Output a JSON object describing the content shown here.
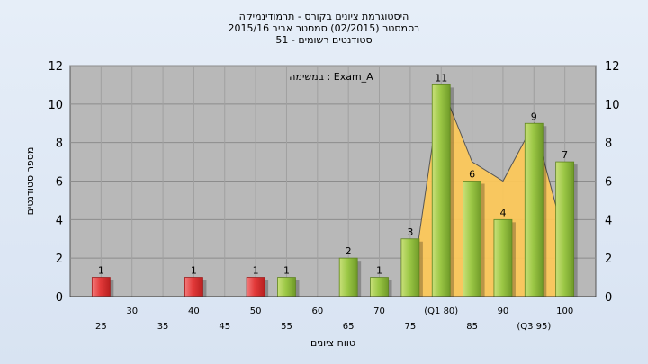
{
  "chart_data": {
    "type": "bar",
    "title_lines": [
      "היסטוגרמת ציונים בקורס - תרמודינמיקה",
      "בסמסטר  (02/2015)  סמסטר אביב 2015/16",
      "סטודנטים רשומים - 51"
    ],
    "annotation": "במשימה : Exam_A",
    "xlabel": "טווח ציונים",
    "ylabel": "מספר סטודנטים",
    "ylim": [
      0,
      12
    ],
    "yticks": [
      "0",
      "2",
      "4",
      "6",
      "8",
      "10",
      "12"
    ],
    "grid": true,
    "x_tick_labels": [
      {
        "x": 25,
        "label": "25",
        "row": 1
      },
      {
        "x": 30,
        "label": "30",
        "row": 0
      },
      {
        "x": 35,
        "label": "35",
        "row": 1
      },
      {
        "x": 40,
        "label": "40",
        "row": 0
      },
      {
        "x": 45,
        "label": "45",
        "row": 1
      },
      {
        "x": 50,
        "label": "50",
        "row": 0
      },
      {
        "x": 55,
        "label": "55",
        "row": 1
      },
      {
        "x": 60,
        "label": "60",
        "row": 0
      },
      {
        "x": 65,
        "label": "65",
        "row": 1
      },
      {
        "x": 70,
        "label": "70",
        "row": 0
      },
      {
        "x": 75,
        "label": "75",
        "row": 1
      },
      {
        "x": 80,
        "label": "(Q1 80)",
        "row": 0
      },
      {
        "x": 85,
        "label": "85",
        "row": 1
      },
      {
        "x": 90,
        "label": "90",
        "row": 0
      },
      {
        "x": 95,
        "label": "(Q3 95)",
        "row": 1
      },
      {
        "x": 100,
        "label": "100",
        "row": 0
      }
    ],
    "bars": [
      {
        "x": 25,
        "value": 1,
        "label": "1",
        "color": "red"
      },
      {
        "x": 40,
        "value": 1,
        "label": "1",
        "color": "red"
      },
      {
        "x": 50,
        "value": 1,
        "label": "1",
        "color": "red"
      },
      {
        "x": 55,
        "value": 1,
        "label": "1",
        "color": "green"
      },
      {
        "x": 65,
        "value": 2,
        "label": "2",
        "color": "green"
      },
      {
        "x": 70,
        "value": 1,
        "label": "1",
        "color": "green"
      },
      {
        "x": 75,
        "value": 3,
        "label": "3",
        "color": "green"
      },
      {
        "x": 80,
        "value": 11,
        "label": "11",
        "color": "green"
      },
      {
        "x": 85,
        "value": 6,
        "label": "6",
        "color": "green"
      },
      {
        "x": 90,
        "value": 4,
        "label": "4",
        "color": "green"
      },
      {
        "x": 95,
        "value": 9,
        "label": "9",
        "color": "green"
      },
      {
        "x": 100,
        "value": 7,
        "label": "7",
        "color": "green"
      }
    ],
    "area_series": [
      {
        "x": 75,
        "y": 0
      },
      {
        "x": 80,
        "y": 11
      },
      {
        "x": 85,
        "y": 7
      },
      {
        "x": 90,
        "y": 6
      },
      {
        "x": 95,
        "y": 9
      },
      {
        "x": 100,
        "y": 3
      }
    ],
    "colors": {
      "plot_bg": "#b8b8b8",
      "area": "#fbc75a",
      "green_bar": "#8fbf3c",
      "red_bar": "#e33a3a"
    }
  }
}
